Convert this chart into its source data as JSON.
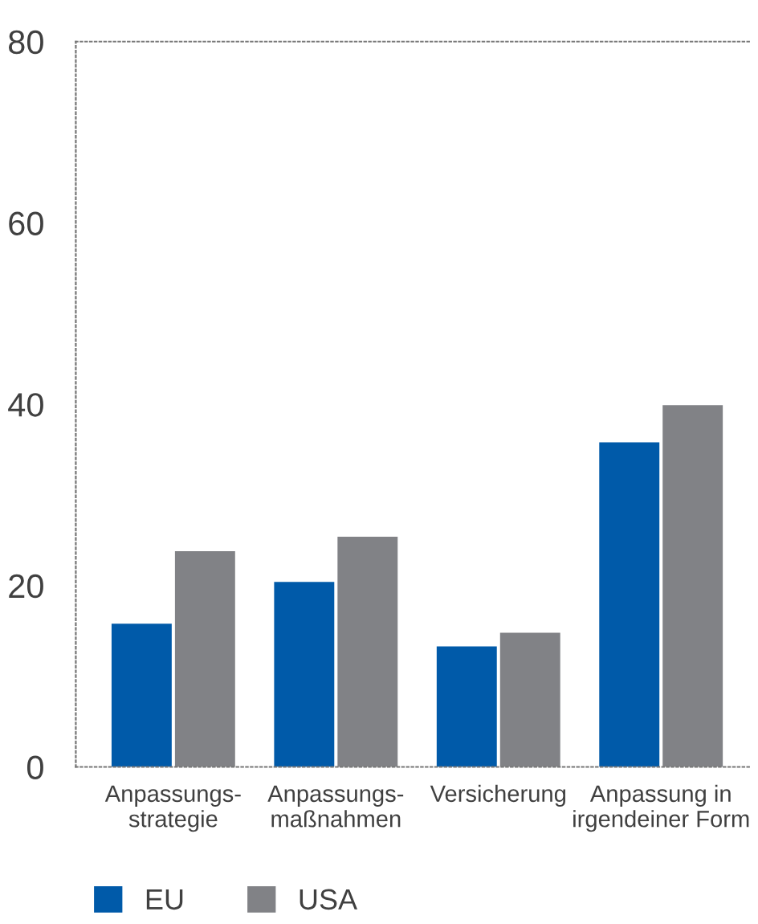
{
  "chart_data": {
    "type": "bar",
    "categories": [
      "Anpassungs-\nstrategie",
      "Anpassungs-\nmaßnahmen",
      "Versicherung",
      "Anpassung in\nirgendeiner Form"
    ],
    "series": [
      {
        "name": "EU",
        "color": "#005aa9",
        "values": [
          15.8,
          20.4,
          13.3,
          35.8
        ]
      },
      {
        "name": "USA",
        "color": "#818286",
        "values": [
          23.8,
          25.4,
          14.8,
          39.9
        ]
      }
    ],
    "ylim": [
      0,
      80
    ],
    "yticks": [
      0,
      20,
      40,
      60,
      80
    ],
    "grid": false,
    "legend": "bottom left"
  }
}
